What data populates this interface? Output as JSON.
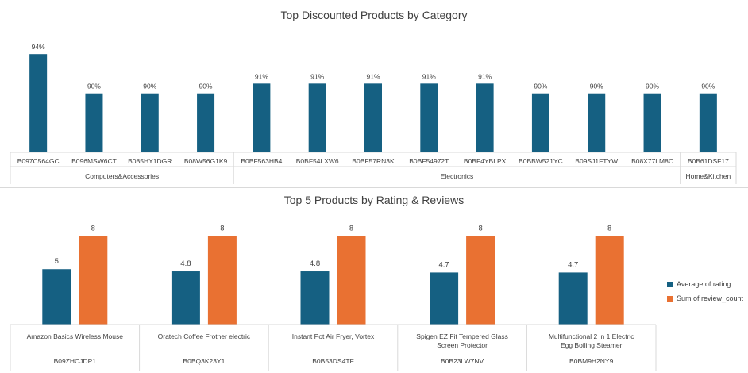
{
  "chart_data": [
    {
      "type": "bar",
      "title": "Top Discounted Products by Category",
      "colors": {
        "bar": "#156082"
      },
      "categories": [
        "B097C564GC",
        "B096MSW6CT",
        "B085HY1DGR",
        "B08W56G1K9",
        "B0BF563HB4",
        "B0BF54LXW6",
        "B0BF57RN3K",
        "B0BF54972T",
        "B0BF4YBLPX",
        "B0BBW521YC",
        "B09SJ1FTYW",
        "B08X77LM8C",
        "B0B61DSF17"
      ],
      "values": [
        94,
        90,
        90,
        90,
        91,
        91,
        91,
        91,
        91,
        90,
        90,
        90,
        90
      ],
      "value_labels": [
        "94%",
        "90%",
        "90%",
        "90%",
        "91%",
        "91%",
        "91%",
        "91%",
        "91%",
        "90%",
        "90%",
        "90%",
        "90%"
      ],
      "groups": [
        {
          "label": "Computers&Accessories",
          "count": 4
        },
        {
          "label": "Electronics",
          "count": 8
        },
        {
          "label": "Home&Kitchen",
          "count": 1
        }
      ],
      "ylim": [
        84,
        94.5
      ],
      "grid": false
    },
    {
      "type": "bar",
      "title": "Top 5 Products by Rating & Reviews",
      "categories": [
        {
          "name": "Amazon Basics Wireless Mouse",
          "id": "B09ZHCJDP1"
        },
        {
          "name": "Oratech Coffee Frother electric",
          "id": "B0BQ3K23Y1"
        },
        {
          "name": "Instant Pot Air Fryer, Vortex",
          "id": "B0B53DS4TF"
        },
        {
          "name": "Spigen EZ Fit Tempered Glass Screen Protector",
          "id": "B0B23LW7NV"
        },
        {
          "name": "Multifunctional 2 in 1 Electric Egg Boiling Steamer",
          "id": "B0BM9H2NY9"
        }
      ],
      "series": [
        {
          "name": "Average of rating",
          "color": "#156082",
          "values": [
            5,
            4.8,
            4.8,
            4.7,
            4.7
          ],
          "value_labels": [
            "5",
            "4.8",
            "4.8",
            "4.7",
            "4.7"
          ]
        },
        {
          "name": "Sum of review_count",
          "color": "#E97132",
          "values": [
            8,
            8,
            8,
            8,
            8
          ],
          "value_labels": [
            "8",
            "8",
            "8",
            "8",
            "8"
          ]
        }
      ],
      "ylim": [
        0,
        8.6
      ],
      "legend": "right",
      "grid": false
    }
  ]
}
